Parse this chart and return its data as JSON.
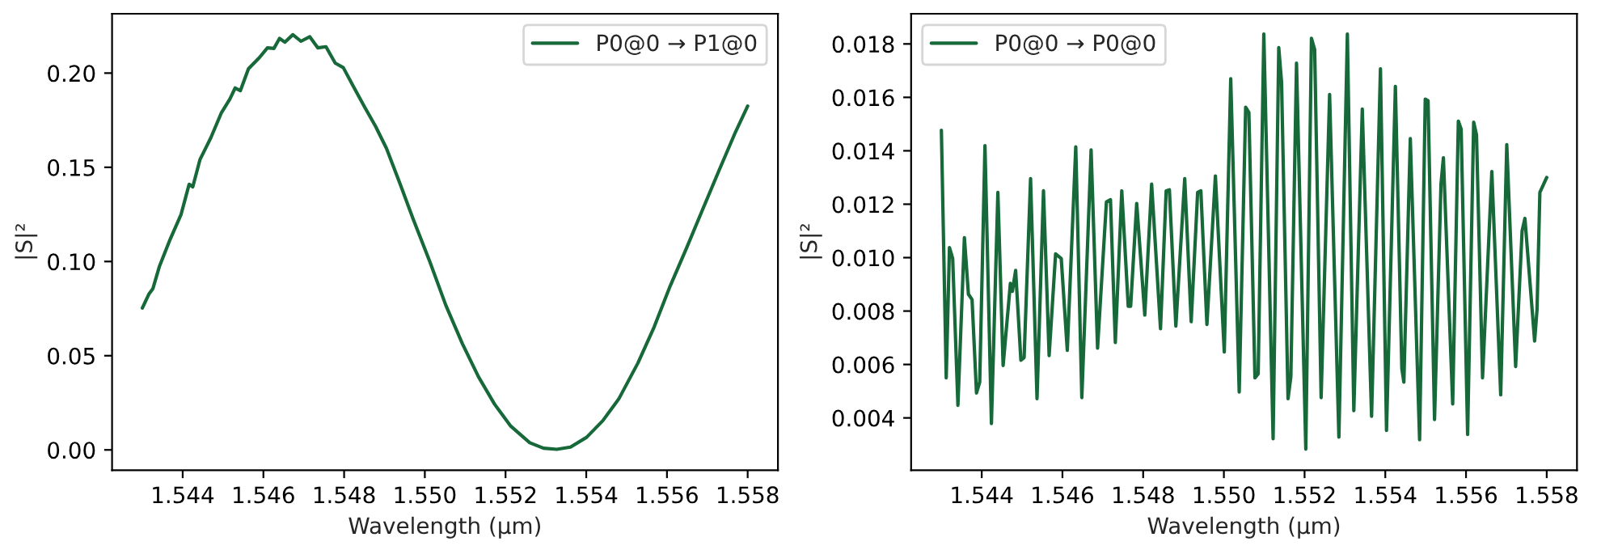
{
  "chart_data": [
    {
      "type": "line",
      "xlabel": "Wavelength (µm)",
      "ylabel": "|S|²",
      "legend": "top right",
      "grid": false,
      "xlim": [
        1.54225,
        1.55875
      ],
      "ylim": [
        -0.0108,
        0.2315
      ],
      "xticks": [
        {
          "value": 1.544,
          "label": "1.544"
        },
        {
          "value": 1.546,
          "label": "1.546"
        },
        {
          "value": 1.548,
          "label": "1.548"
        },
        {
          "value": 1.55,
          "label": "1.550"
        },
        {
          "value": 1.552,
          "label": "1.552"
        },
        {
          "value": 1.554,
          "label": "1.554"
        },
        {
          "value": 1.556,
          "label": "1.556"
        },
        {
          "value": 1.558,
          "label": "1.558"
        }
      ],
      "yticks": [
        {
          "value": 0,
          "label": "0.00"
        },
        {
          "value": 0.05,
          "label": "0.05"
        },
        {
          "value": 0.1,
          "label": "0.10"
        },
        {
          "value": 0.15,
          "label": "0.15"
        },
        {
          "value": 0.2,
          "label": "0.20"
        }
      ],
      "series": [
        {
          "name": "P0@0 → P1@0",
          "color": "#17693a",
          "x": [
            1.543,
            1.54316,
            1.54326,
            1.54342,
            1.54369,
            1.54396,
            1.54416,
            1.54425,
            1.54443,
            1.5447,
            1.54496,
            1.54517,
            1.5453,
            1.54543,
            1.54563,
            1.5459,
            1.5461,
            1.54626,
            1.5464,
            1.54653,
            1.54673,
            1.54693,
            1.54715,
            1.54735,
            1.54755,
            1.54778,
            1.54798,
            1.54825,
            1.54851,
            1.54878,
            1.54905,
            1.54939,
            1.54972,
            1.55012,
            1.55052,
            1.55093,
            1.55133,
            1.55173,
            1.55213,
            1.5526,
            1.55294,
            1.55327,
            1.55361,
            1.55401,
            1.55441,
            1.55481,
            1.55528,
            1.55568,
            1.55608,
            1.55649,
            1.55689,
            1.55729,
            1.5577,
            1.558
          ],
          "values": [
            0.0753,
            0.0826,
            0.0855,
            0.0972,
            0.1118,
            0.125,
            0.141,
            0.1396,
            0.1542,
            0.1658,
            0.179,
            0.1863,
            0.1921,
            0.1907,
            0.2023,
            0.2082,
            0.2134,
            0.2131,
            0.2184,
            0.2164,
            0.2204,
            0.2169,
            0.2193,
            0.2134,
            0.214,
            0.2053,
            0.2029,
            0.1921,
            0.1819,
            0.1717,
            0.16,
            0.141,
            0.122,
            0.1001,
            0.0768,
            0.0564,
            0.0388,
            0.0242,
            0.0126,
            0.0038,
            0.0009,
            0.0003,
            0.0015,
            0.0067,
            0.0155,
            0.0272,
            0.0461,
            0.0651,
            0.087,
            0.1074,
            0.1279,
            0.1483,
            0.1688,
            0.1825
          ]
        }
      ]
    },
    {
      "type": "line",
      "xlabel": "Wavelength (µm)",
      "ylabel": "|S|²",
      "legend": "top left",
      "grid": false,
      "xlim": [
        1.54225,
        1.55875
      ],
      "ylim": [
        0.00204,
        0.01913
      ],
      "xticks": [
        {
          "value": 1.544,
          "label": "1.544"
        },
        {
          "value": 1.546,
          "label": "1.546"
        },
        {
          "value": 1.548,
          "label": "1.548"
        },
        {
          "value": 1.55,
          "label": "1.550"
        },
        {
          "value": 1.552,
          "label": "1.552"
        },
        {
          "value": 1.554,
          "label": "1.554"
        },
        {
          "value": 1.556,
          "label": "1.556"
        },
        {
          "value": 1.558,
          "label": "1.558"
        }
      ],
      "yticks": [
        0.004,
        0.006,
        0.008,
        {
          "value": 0.01,
          "label": "0.010"
        },
        0.012,
        0.014,
        0.016,
        0.018
      ],
      "series": [
        {
          "name": "P0@0 → P0@0",
          "color": "#17693a",
          "x": [
            1.543,
            1.54312,
            1.5432,
            1.54328,
            1.54341,
            1.54357,
            1.54367,
            1.54376,
            1.54387,
            1.54395,
            1.54408,
            1.54424,
            1.5444,
            1.54453,
            1.54471,
            1.54476,
            1.54484,
            1.54497,
            1.54505,
            1.54521,
            1.54537,
            1.54553,
            1.54567,
            1.54583,
            1.54597,
            1.54612,
            1.54633,
            1.54648,
            1.54671,
            1.54687,
            1.54709,
            1.54719,
            1.54731,
            1.54747,
            1.54763,
            1.54769,
            1.54784,
            1.54804,
            1.54821,
            1.54843,
            1.54857,
            1.54865,
            1.54881,
            1.54903,
            1.54919,
            1.54935,
            1.54943,
            1.54958,
            1.54979,
            1.55001,
            1.55017,
            1.55038,
            1.55054,
            1.55062,
            1.55077,
            1.55085,
            1.55099,
            1.55122,
            1.55136,
            1.55143,
            1.55159,
            1.55166,
            1.5518,
            1.55203,
            1.55217,
            1.55225,
            1.55241,
            1.55262,
            1.55285,
            1.55306,
            1.55322,
            1.55343,
            1.55366,
            1.55388,
            1.55403,
            1.55425,
            1.55441,
            1.55446,
            1.55462,
            1.55485,
            1.55499,
            1.55506,
            1.55522,
            1.55538,
            1.55544,
            1.55567,
            1.55581,
            1.55588,
            1.55604,
            1.55619,
            1.55626,
            1.55641,
            1.55664,
            1.55686,
            1.55701,
            1.55723,
            1.55739,
            1.55746,
            1.5577,
            1.55776,
            1.55783,
            1.558
          ],
          "values": [
            0.01477,
            0.0055,
            0.01038,
            0.00997,
            0.00447,
            0.01075,
            0.00863,
            0.00843,
            0.00493,
            0.00534,
            0.01419,
            0.00379,
            0.01244,
            0.00596,
            0.00904,
            0.00874,
            0.00952,
            0.00616,
            0.00626,
            0.01296,
            0.00472,
            0.0125,
            0.00633,
            0.01014,
            0.00997,
            0.00653,
            0.01415,
            0.00476,
            0.01403,
            0.00661,
            0.01209,
            0.01217,
            0.00682,
            0.0125,
            0.00818,
            0.00818,
            0.01203,
            0.00785,
            0.01275,
            0.00734,
            0.0125,
            0.01254,
            0.00744,
            0.01296,
            0.0076,
            0.01244,
            0.0125,
            0.0075,
            0.01306,
            0.00647,
            0.0167,
            0.00497,
            0.01563,
            0.01543,
            0.0055,
            0.00565,
            0.01837,
            0.00322,
            0.01786,
            0.01656,
            0.00472,
            0.00554,
            0.01728,
            0.00283,
            0.01821,
            0.01779,
            0.00476,
            0.01611,
            0.00328,
            0.01837,
            0.00427,
            0.01556,
            0.00406,
            0.01707,
            0.00353,
            0.01641,
            0.00585,
            0.00534,
            0.01446,
            0.00318,
            0.01593,
            0.01587,
            0.00394,
            0.01275,
            0.01374,
            0.00452,
            0.01511,
            0.01481,
            0.00338,
            0.01507,
            0.0146,
            0.0055,
            0.01322,
            0.00486,
            0.01423,
            0.00592,
            0.011,
            0.01147,
            0.00688,
            0.00806,
            0.01244,
            0.013
          ]
        }
      ]
    }
  ]
}
